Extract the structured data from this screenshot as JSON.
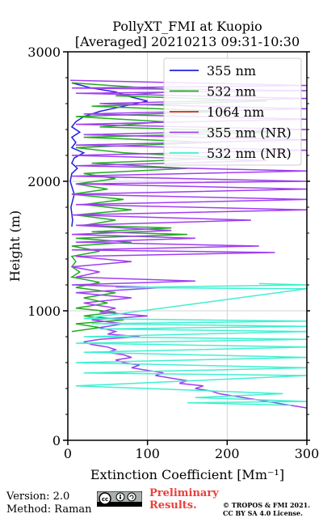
{
  "chart_data": {
    "type": "line",
    "title": "PollyXT_FMI at Kuopio",
    "subtitle": "[Averaged] 20210213 09:31-10:30",
    "xlabel": "Extinction Coefficient [Mm⁻¹]",
    "ylabel": "Height (m)",
    "xlim": [
      0,
      300
    ],
    "ylim": [
      0,
      3000
    ],
    "x_ticks": [
      "0",
      "100",
      "200",
      "300"
    ],
    "y_ticks": [
      "0",
      "1000",
      "2000",
      "3000"
    ],
    "grid": true,
    "legend_position": "upper-right",
    "series": [
      {
        "name": "355 nm",
        "color": "#2020e0",
        "points": [
          [
            5,
            2760
          ],
          [
            30,
            2720
          ],
          [
            60,
            2690
          ],
          [
            80,
            2650
          ],
          [
            100,
            2620
          ],
          [
            70,
            2580
          ],
          [
            40,
            2540
          ],
          [
            20,
            2500
          ],
          [
            10,
            2460
          ],
          [
            5,
            2420
          ],
          [
            15,
            2380
          ],
          [
            5,
            2340
          ],
          [
            10,
            2300
          ],
          [
            5,
            2260
          ],
          [
            20,
            2220
          ],
          [
            8,
            2180
          ],
          [
            5,
            2140
          ],
          [
            12,
            2100
          ],
          [
            5,
            2060
          ],
          [
            3,
            2000
          ],
          [
            8,
            1900
          ],
          [
            4,
            1800
          ],
          [
            6,
            1700
          ],
          [
            5,
            1650
          ]
        ]
      },
      {
        "name": "532 nm",
        "color": "#22aa22",
        "points": [
          [
            5,
            2760
          ],
          [
            150,
            2700
          ],
          [
            60,
            2660
          ],
          [
            250,
            2620
          ],
          [
            30,
            2580
          ],
          [
            200,
            2540
          ],
          [
            10,
            2500
          ],
          [
            120,
            2460
          ],
          [
            40,
            2420
          ],
          [
            260,
            2380
          ],
          [
            20,
            2340
          ],
          [
            180,
            2300
          ],
          [
            10,
            2260
          ],
          [
            70,
            2220
          ],
          [
            200,
            2180
          ],
          [
            30,
            2140
          ],
          [
            150,
            2100
          ],
          [
            20,
            2060
          ],
          [
            60,
            2020
          ],
          [
            10,
            1980
          ],
          [
            50,
            1940
          ],
          [
            5,
            1900
          ],
          [
            70,
            1860
          ],
          [
            20,
            1820
          ],
          [
            80,
            1780
          ],
          [
            10,
            1740
          ],
          [
            60,
            1700
          ],
          [
            20,
            1660
          ],
          [
            130,
            1640
          ],
          [
            30,
            1610
          ],
          [
            150,
            1590
          ],
          [
            10,
            1560
          ],
          [
            80,
            1530
          ],
          [
            5,
            1500
          ],
          [
            40,
            1460
          ],
          [
            5,
            1420
          ],
          [
            10,
            1380
          ],
          [
            5,
            1340
          ],
          [
            15,
            1300
          ],
          [
            5,
            1260
          ],
          [
            40,
            1220
          ],
          [
            10,
            1180
          ],
          [
            60,
            1140
          ],
          [
            20,
            1100
          ],
          [
            50,
            1060
          ],
          [
            10,
            1020
          ],
          [
            60,
            990
          ],
          [
            20,
            960
          ],
          [
            70,
            930
          ],
          [
            10,
            900
          ],
          [
            40,
            870
          ],
          [
            5,
            840
          ]
        ]
      },
      {
        "name": "1064 nm",
        "color": "#d62728",
        "points": []
      },
      {
        "name": "355 nm (NR)",
        "color": "#a03ef0",
        "points": [
          [
            3,
            2780
          ],
          [
            300,
            2740
          ],
          [
            5,
            2720
          ],
          [
            300,
            2700
          ],
          [
            10,
            2680
          ],
          [
            300,
            2640
          ],
          [
            40,
            2600
          ],
          [
            300,
            2560
          ],
          [
            20,
            2520
          ],
          [
            300,
            2480
          ],
          [
            10,
            2440
          ],
          [
            300,
            2400
          ],
          [
            20,
            2360
          ],
          [
            300,
            2320
          ],
          [
            10,
            2280
          ],
          [
            300,
            2240
          ],
          [
            5,
            2200
          ],
          [
            250,
            2160
          ],
          [
            10,
            2120
          ],
          [
            300,
            2080
          ],
          [
            5,
            2040
          ],
          [
            300,
            2000
          ],
          [
            10,
            1980
          ],
          [
            300,
            1940
          ],
          [
            5,
            1900
          ],
          [
            300,
            1860
          ],
          [
            10,
            1820
          ],
          [
            300,
            1780
          ],
          [
            5,
            1740
          ],
          [
            230,
            1700
          ],
          [
            10,
            1660
          ],
          [
            130,
            1620
          ],
          [
            5,
            1590
          ],
          [
            160,
            1560
          ],
          [
            10,
            1530
          ],
          [
            240,
            1500
          ],
          [
            5,
            1470
          ],
          [
            260,
            1450
          ],
          [
            10,
            1420
          ],
          [
            80,
            1380
          ],
          [
            5,
            1340
          ],
          [
            40,
            1300
          ],
          [
            10,
            1260
          ],
          [
            160,
            1230
          ],
          [
            5,
            1200
          ],
          [
            120,
            1180
          ],
          [
            10,
            1140
          ],
          [
            80,
            1100
          ],
          [
            20,
            1060
          ],
          [
            60,
            1020
          ],
          [
            40,
            990
          ],
          [
            100,
            960
          ],
          [
            30,
            930
          ],
          [
            70,
            900
          ],
          [
            40,
            870
          ],
          [
            60,
            840
          ],
          [
            50,
            820
          ],
          [
            90,
            800
          ],
          [
            40,
            780
          ],
          [
            20,
            760
          ],
          [
            30,
            740
          ],
          [
            50,
            720
          ],
          [
            60,
            700
          ],
          [
            50,
            680
          ],
          [
            70,
            660
          ],
          [
            80,
            640
          ],
          [
            60,
            620
          ],
          [
            70,
            600
          ],
          [
            90,
            580
          ],
          [
            80,
            560
          ],
          [
            100,
            540
          ],
          [
            120,
            520
          ],
          [
            110,
            500
          ],
          [
            130,
            480
          ],
          [
            150,
            460
          ],
          [
            140,
            440
          ],
          [
            170,
            420
          ],
          [
            160,
            400
          ],
          [
            180,
            380
          ],
          [
            190,
            360
          ],
          [
            210,
            340
          ],
          [
            230,
            320
          ],
          [
            250,
            300
          ],
          [
            270,
            280
          ],
          [
            300,
            250
          ]
        ]
      },
      {
        "name": "532 nm (NR)",
        "color": "#40f0d0",
        "points": [
          [
            240,
            1210
          ],
          [
            300,
            1200
          ],
          [
            60,
            1180
          ],
          [
            300,
            1170
          ],
          [
            20,
            940
          ],
          [
            300,
            920
          ],
          [
            30,
            900
          ],
          [
            300,
            880
          ],
          [
            40,
            860
          ],
          [
            300,
            840
          ],
          [
            20,
            800
          ],
          [
            300,
            780
          ],
          [
            10,
            750
          ],
          [
            300,
            720
          ],
          [
            20,
            680
          ],
          [
            300,
            640
          ],
          [
            10,
            600
          ],
          [
            300,
            560
          ],
          [
            20,
            520
          ],
          [
            300,
            500
          ],
          [
            10,
            420
          ],
          [
            100,
            400
          ],
          [
            270,
            360
          ],
          [
            160,
            330
          ],
          [
            300,
            300
          ],
          [
            150,
            290
          ],
          [
            280,
            270
          ]
        ]
      }
    ]
  },
  "footer": {
    "version": "Version: 2.0",
    "method": "Method: Raman",
    "preliminary_1": "Preliminary",
    "preliminary_2": "Results.",
    "copyright_1": "© TROPOS & FMI 2021.",
    "copyright_2": "CC BY SA 4.0 License."
  },
  "icons": {
    "license": "cc-by-sa-icon"
  }
}
